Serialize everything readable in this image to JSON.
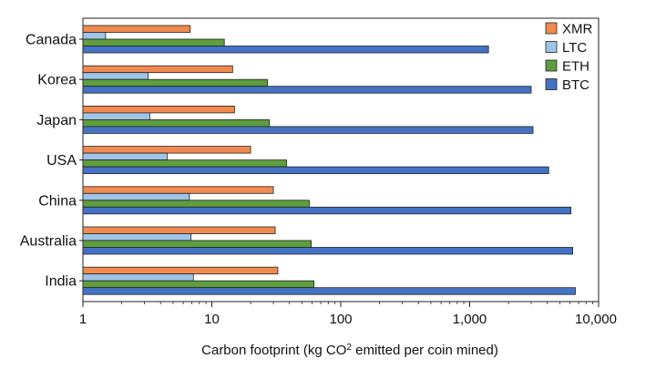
{
  "chart_data": {
    "type": "bar",
    "orientation": "horizontal",
    "scale": "log",
    "categories": [
      "Canada",
      "Korea",
      "Japan",
      "USA",
      "China",
      "Australia",
      "India"
    ],
    "series": [
      {
        "name": "XMR",
        "color": "#f08a50",
        "values": [
          6.8,
          14.5,
          15.0,
          20.0,
          30.0,
          31.0,
          32.5
        ]
      },
      {
        "name": "LTC",
        "color": "#9ec5e8",
        "values": [
          1.5,
          3.2,
          3.3,
          4.5,
          6.7,
          6.9,
          7.2
        ]
      },
      {
        "name": "ETH",
        "color": "#5e9e3e",
        "values": [
          12.5,
          27.0,
          28.0,
          38.0,
          57.0,
          59.0,
          62.0
        ]
      },
      {
        "name": "BTC",
        "color": "#4472c4",
        "values": [
          1400,
          3000,
          3100,
          4100,
          6100,
          6300,
          6600
        ]
      }
    ],
    "legend_order": [
      "XMR",
      "LTC",
      "ETH",
      "BTC"
    ],
    "legend_position": "top-right",
    "xlim": [
      1,
      10000
    ],
    "xticks": [
      {
        "value": 1,
        "label": "1"
      },
      {
        "value": 10,
        "label": "10"
      },
      {
        "value": 100,
        "label": "100"
      },
      {
        "value": 1000,
        "label": "1,000"
      },
      {
        "value": 10000,
        "label": "10,000"
      }
    ],
    "xlabel_main": "Carbon footprint (kg CO",
    "xlabel_sup": "2",
    "xlabel_rest": " emitted per coin mined)"
  }
}
